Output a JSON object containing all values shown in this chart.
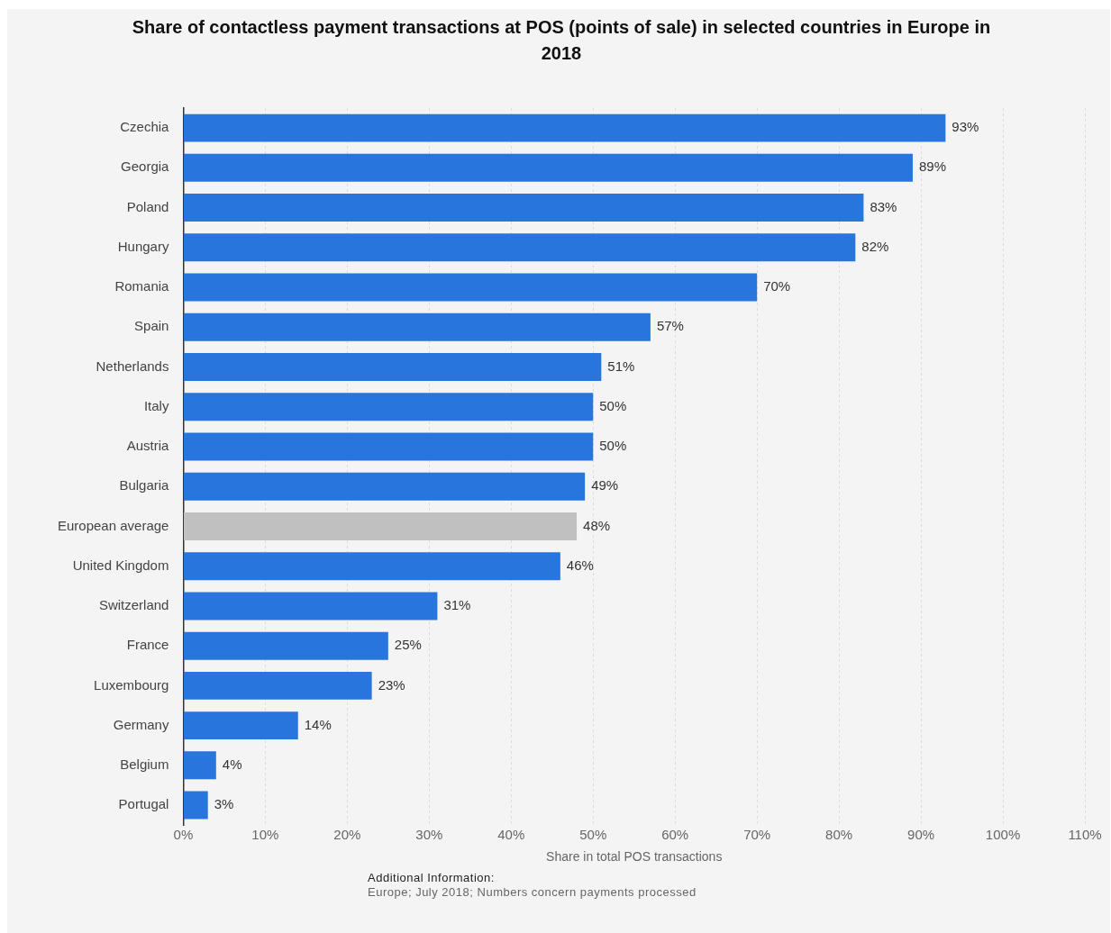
{
  "chart_data": {
    "type": "bar",
    "orientation": "horizontal",
    "title": "Share of contactless payment transactions at POS (points of sale) in selected countries in Europe in 2018",
    "xlabel": "Share in total POS transactions",
    "categories": [
      "Czechia",
      "Georgia",
      "Poland",
      "Hungary",
      "Romania",
      "Spain",
      "Netherlands",
      "Italy",
      "Austria",
      "Bulgaria",
      "European average",
      "United Kingdom",
      "Switzerland",
      "France",
      "Luxembourg",
      "Germany",
      "Belgium",
      "Portugal"
    ],
    "values": [
      93,
      89,
      83,
      82,
      70,
      57,
      51,
      50,
      50,
      49,
      48,
      46,
      31,
      25,
      23,
      14,
      4,
      3
    ],
    "colors": [
      "#2876dd",
      "#2876dd",
      "#2876dd",
      "#2876dd",
      "#2876dd",
      "#2876dd",
      "#2876dd",
      "#2876dd",
      "#2876dd",
      "#2876dd",
      "#c0c0c0",
      "#2876dd",
      "#2876dd",
      "#2876dd",
      "#2876dd",
      "#2876dd",
      "#2876dd",
      "#2876dd"
    ],
    "value_labels": [
      "93%",
      "89%",
      "83%",
      "82%",
      "70%",
      "57%",
      "51%",
      "50%",
      "50%",
      "49%",
      "48%",
      "46%",
      "31%",
      "25%",
      "23%",
      "14%",
      "4%",
      "3%"
    ],
    "xlim": [
      0,
      110
    ],
    "xticks": [
      {
        "value": 0,
        "label": "0%"
      },
      {
        "value": 10,
        "label": "10%"
      },
      {
        "value": 20,
        "label": "20%"
      },
      {
        "value": 30,
        "label": "30%"
      },
      {
        "value": 40,
        "label": "40%"
      },
      {
        "value": 50,
        "label": "50%"
      },
      {
        "value": 60,
        "label": "60%"
      },
      {
        "value": 70,
        "label": "70%"
      },
      {
        "value": 80,
        "label": "80%"
      },
      {
        "value": 90,
        "label": "90%"
      },
      {
        "value": 100,
        "label": "100%"
      },
      {
        "value": 110,
        "label": "110%"
      }
    ],
    "grid": "x",
    "legend": false,
    "annotations": [
      "Additional Information:",
      "Europe; July 2018; Numbers concern payments processed"
    ]
  }
}
